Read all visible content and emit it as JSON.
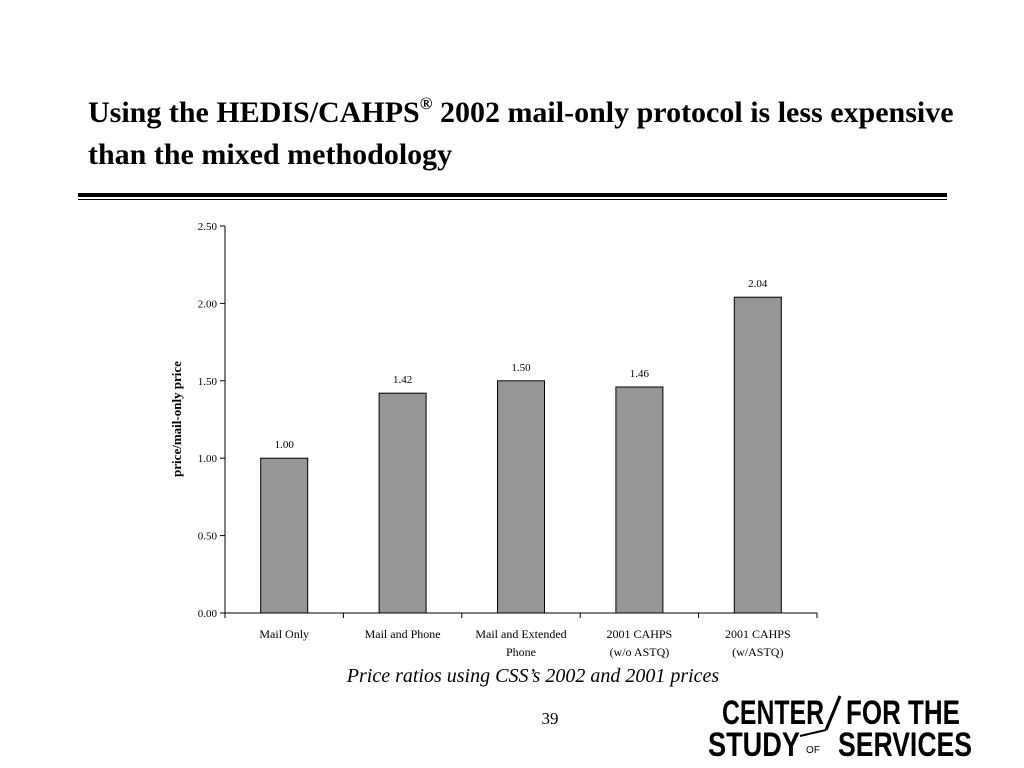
{
  "slide": {
    "title_part1": "Using the HEDIS/CAHPS",
    "title_mark": "®",
    "title_part2": " 2002 mail-only protocol is less expensive than the mixed methodology",
    "caption": "Price ratios using CSS’s 2002 and 2001 prices",
    "page_number": "39"
  },
  "logo": {
    "text": "CENTER FOR THE STUDY OF SERVICES"
  },
  "chart_data": {
    "type": "bar",
    "categories": [
      [
        "Mail Only"
      ],
      [
        "Mail and Phone"
      ],
      [
        "Mail and Extended",
        "Phone"
      ],
      [
        "2001 CAHPS",
        "(w/o ASTQ)"
      ],
      [
        "2001 CAHPS",
        "(w/ASTQ)"
      ]
    ],
    "values": [
      1.0,
      1.42,
      1.5,
      1.46,
      2.04
    ],
    "value_labels": [
      "1.00",
      "1.42",
      "1.50",
      "1.46",
      "2.04"
    ],
    "ylabel": "price/mail-only price",
    "ylim": [
      0,
      2.5
    ],
    "yticks": [
      "0.00",
      "0.50",
      "1.00",
      "1.50",
      "2.00",
      "2.50"
    ],
    "bar_color": "#969696",
    "grid": false,
    "legend": "none"
  }
}
